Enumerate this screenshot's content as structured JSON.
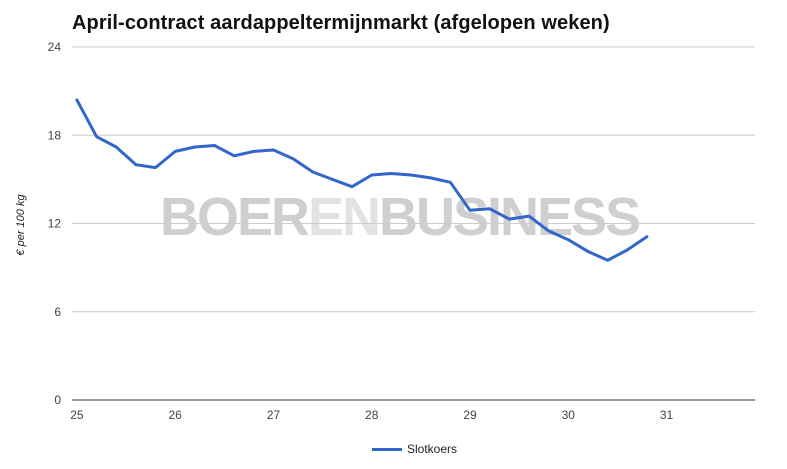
{
  "chart_data": {
    "type": "line",
    "title": "April-contract aardappeltermijnmarkt (afgelopen weken)",
    "ylabel": "€ per 100 kg",
    "xlabel": "",
    "xlim": [
      24.95,
      31.9
    ],
    "ylim": [
      0,
      24
    ],
    "yticks": [
      "0",
      "6",
      "12",
      "18",
      "24"
    ],
    "xticks": [
      "25",
      "26",
      "27",
      "28",
      "29",
      "30",
      "31"
    ],
    "grid": true,
    "legend_position": "bottom",
    "series": [
      {
        "name": "Slotkoers",
        "color": "#3366cc",
        "x": [
          25.0,
          25.2,
          25.4,
          25.6,
          25.8,
          26.0,
          26.2,
          26.4,
          26.6,
          26.8,
          27.0,
          27.2,
          27.4,
          27.6,
          27.8,
          28.0,
          28.2,
          28.4,
          28.6,
          28.8,
          29.0,
          29.2,
          29.4,
          29.6,
          29.8,
          30.0,
          30.2,
          30.4,
          30.6,
          30.8
        ],
        "y": [
          20.4,
          17.9,
          17.2,
          16.0,
          15.8,
          16.9,
          17.2,
          17.3,
          16.6,
          16.9,
          17.0,
          16.4,
          15.5,
          15.0,
          14.5,
          15.3,
          15.4,
          15.3,
          15.1,
          14.8,
          12.9,
          13.0,
          12.3,
          12.5,
          11.5,
          10.9,
          10.1,
          9.5,
          10.2,
          11.1
        ]
      }
    ]
  },
  "watermark": {
    "part1": "BOER",
    "part2": "EN",
    "part3": "BUSINESS"
  }
}
